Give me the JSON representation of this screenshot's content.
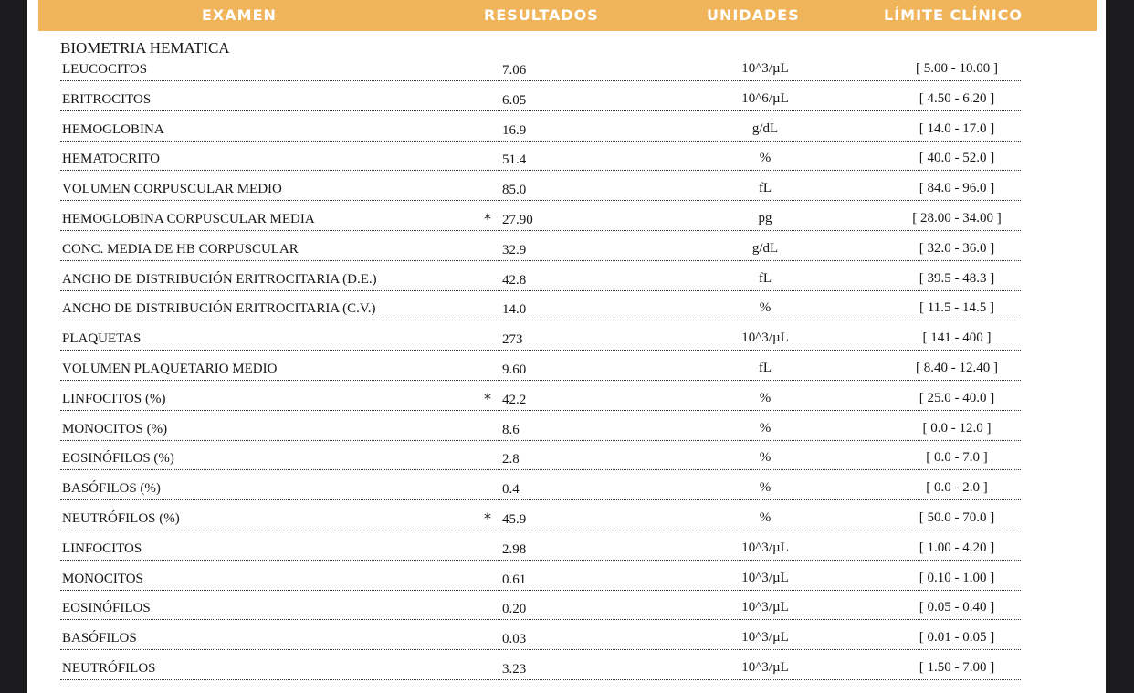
{
  "header": {
    "examen": "EXAMEN",
    "resultados": "RESULTADOS",
    "unidades": "UNIDADES",
    "limite": "LÍMITE CLÍNICO"
  },
  "section": {
    "title": "BIOMETRIA HEMATICA"
  },
  "rows": [
    {
      "name": "LEUCOCITOS",
      "flag": "",
      "value": "7.06",
      "unit": "10^3/µL",
      "range": "[ 5.00 - 10.00 ]"
    },
    {
      "name": "ERITROCITOS",
      "flag": "",
      "value": "6.05",
      "unit": "10^6/µL",
      "range": "[ 4.50 - 6.20 ]"
    },
    {
      "name": "HEMOGLOBINA",
      "flag": "",
      "value": "16.9",
      "unit": "g/dL",
      "range": "[ 14.0 - 17.0 ]"
    },
    {
      "name": "HEMATOCRITO",
      "flag": "",
      "value": "51.4",
      "unit": "%",
      "range": "[ 40.0 - 52.0 ]"
    },
    {
      "name": "VOLUMEN CORPUSCULAR MEDIO",
      "flag": "",
      "value": "85.0",
      "unit": "fL",
      "range": "[ 84.0 - 96.0 ]"
    },
    {
      "name": "HEMOGLOBINA CORPUSCULAR MEDIA",
      "flag": "*",
      "value": "27.90",
      "unit": "pg",
      "range": "[ 28.00 - 34.00 ]"
    },
    {
      "name": "CONC. MEDIA DE HB CORPUSCULAR",
      "flag": "",
      "value": "32.9",
      "unit": "g/dL",
      "range": "[ 32.0 - 36.0 ]"
    },
    {
      "name": "ANCHO DE DISTRIBUCIÓN ERITROCITARIA (D.E.)",
      "flag": "",
      "value": "42.8",
      "unit": "fL",
      "range": "[ 39.5 - 48.3 ]"
    },
    {
      "name": "ANCHO DE DISTRIBUCIÓN ERITROCITARIA (C.V.)",
      "flag": "",
      "value": "14.0",
      "unit": "%",
      "range": "[ 11.5 - 14.5 ]"
    },
    {
      "name": "PLAQUETAS",
      "flag": "",
      "value": "273",
      "unit": "10^3/µL",
      "range": "[ 141 - 400 ]"
    },
    {
      "name": "VOLUMEN PLAQUETARIO MEDIO",
      "flag": "",
      "value": "9.60",
      "unit": "fL",
      "range": "[ 8.40 - 12.40 ]"
    },
    {
      "name": "LINFOCITOS (%)",
      "flag": "*",
      "value": "42.2",
      "unit": "%",
      "range": "[ 25.0 - 40.0 ]"
    },
    {
      "name": "MONOCITOS (%)",
      "flag": "",
      "value": "8.6",
      "unit": "%",
      "range": "[ 0.0 - 12.0 ]"
    },
    {
      "name": "EOSINÓFILOS (%)",
      "flag": "",
      "value": "2.8",
      "unit": "%",
      "range": "[ 0.0 - 7.0 ]"
    },
    {
      "name": "BASÓFILOS (%)",
      "flag": "",
      "value": "0.4",
      "unit": "%",
      "range": "[ 0.0 - 2.0 ]"
    },
    {
      "name": "NEUTRÓFILOS (%)",
      "flag": "*",
      "value": "45.9",
      "unit": "%",
      "range": "[ 50.0 - 70.0 ]"
    },
    {
      "name": "LINFOCITOS",
      "flag": "",
      "value": "2.98",
      "unit": "10^3/µL",
      "range": "[ 1.00 - 4.20 ]"
    },
    {
      "name": "MONOCITOS",
      "flag": "",
      "value": "0.61",
      "unit": "10^3/µL",
      "range": "[ 0.10 - 1.00 ]"
    },
    {
      "name": "EOSINÓFILOS",
      "flag": "",
      "value": "0.20",
      "unit": "10^3/µL",
      "range": "[ 0.05 - 0.40 ]"
    },
    {
      "name": "BASÓFILOS",
      "flag": "",
      "value": "0.03",
      "unit": "10^3/µL",
      "range": "[ 0.01 - 0.05 ]"
    },
    {
      "name": "NEUTRÓFILOS",
      "flag": "",
      "value": "3.23",
      "unit": "10^3/µL",
      "range": "[ 1.50 - 7.00 ]"
    }
  ]
}
